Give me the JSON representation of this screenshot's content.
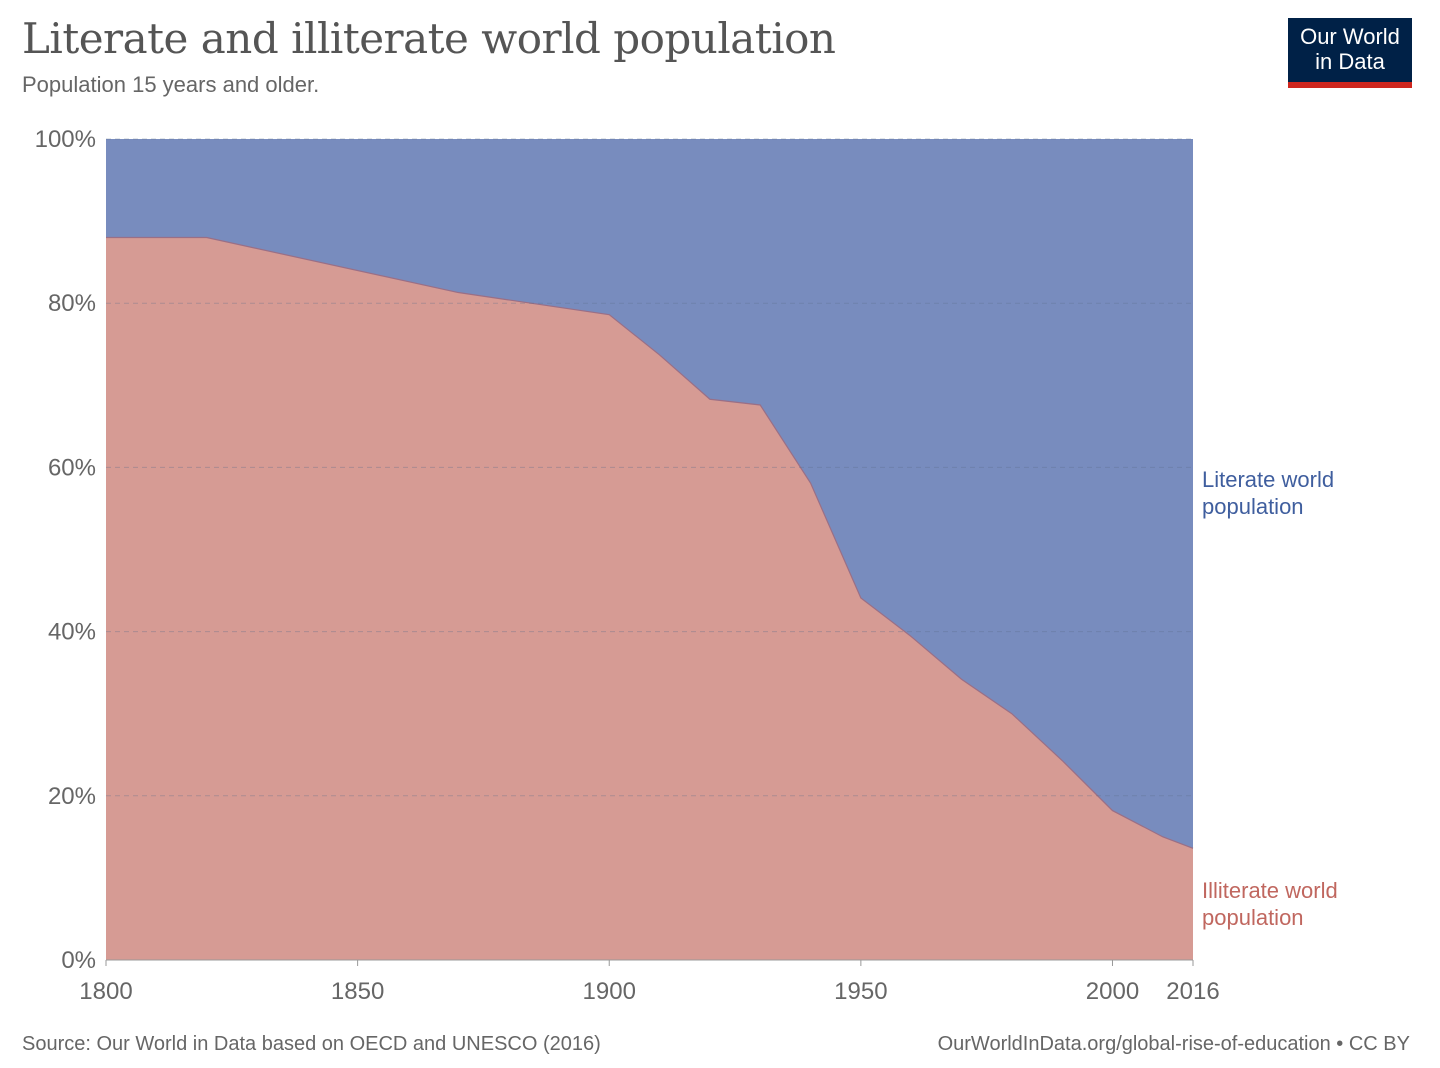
{
  "header": {
    "title": "Literate and illiterate world population",
    "subtitle": "Population 15 years and older."
  },
  "logo": {
    "line1": "Our World",
    "line2": "in Data",
    "colors": {
      "background": "#002147",
      "accent": "#ce261e"
    }
  },
  "footer": {
    "source": "Source: Our World in Data based on OECD and UNESCO (2016)",
    "url": "OurWorldInData.org/global-rise-of-education • CC BY"
  },
  "chart_data": {
    "type": "area",
    "stacked": true,
    "percent": true,
    "title": "Literate and illiterate world population",
    "subtitle": "Population 15 years and older.",
    "xlabel": "",
    "ylabel": "",
    "x": [
      1800,
      1820,
      1870,
      1900,
      1910,
      1920,
      1930,
      1940,
      1950,
      1960,
      1970,
      1980,
      1990,
      2000,
      2010,
      2016
    ],
    "xlim": [
      1800,
      2016
    ],
    "ylim": [
      0,
      100
    ],
    "x_ticks": [
      1800,
      1850,
      1900,
      1950,
      2000,
      2016
    ],
    "x_tick_labels": [
      "1800",
      "1850",
      "1900",
      "1950",
      "2000",
      "2016"
    ],
    "y_ticks": [
      0,
      20,
      40,
      60,
      80,
      100
    ],
    "y_tick_labels": [
      "0%",
      "20%",
      "40%",
      "60%",
      "80%",
      "100%"
    ],
    "grid": true,
    "series": [
      {
        "name": "Illiterate world population",
        "label_lines": [
          "Illiterate world",
          "population"
        ],
        "color": "#d69b94",
        "label_color": "#c0675f",
        "values": [
          88,
          88,
          81.3,
          78.6,
          73.7,
          68.3,
          67.6,
          58.1,
          44.1,
          39.4,
          34.2,
          30.0,
          24.3,
          18.2,
          15.0,
          13.6
        ]
      },
      {
        "name": "Literate world population",
        "label_lines": [
          "Literate world",
          "population"
        ],
        "color": "#788cbe",
        "label_color": "#3f5e9e",
        "values": [
          12,
          12,
          18.7,
          21.4,
          26.3,
          31.7,
          32.4,
          41.9,
          55.9,
          60.6,
          65.8,
          70.0,
          75.7,
          81.8,
          85.0,
          86.4
        ]
      }
    ]
  }
}
